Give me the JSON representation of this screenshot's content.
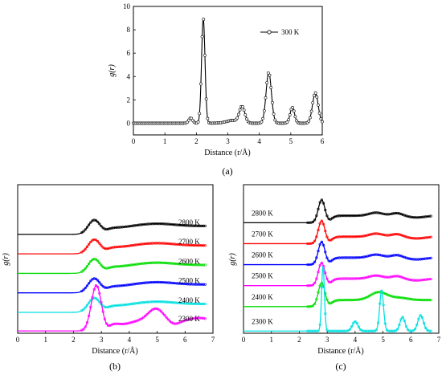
{
  "chart_data": [
    {
      "type": "line",
      "panel_label": "(a)",
      "xlabel": "Distance (r/Å)",
      "ylabel": "g(r)",
      "xlim": [
        0,
        6
      ],
      "ylim": [
        -1,
        10
      ],
      "xticks": [
        "0",
        "1",
        "2",
        "3",
        "4",
        "5",
        "6"
      ],
      "yticks": [
        "0",
        "2",
        "4",
        "6",
        "8",
        "10"
      ],
      "legend_position": "top-right",
      "series": [
        {
          "name": "300 K",
          "color": "#000000",
          "peaks": [
            [
              1.82,
              0.45,
              0.06
            ],
            [
              2.22,
              9.0,
              0.055
            ],
            [
              3.45,
              1.45,
              0.09
            ],
            [
              4.3,
              4.35,
              0.085
            ],
            [
              5.05,
              1.35,
              0.07
            ],
            [
              5.78,
              2.6,
              0.09
            ]
          ],
          "x": [
            0,
            1.5,
            1.82,
            2.0,
            2.22,
            2.45,
            3.0,
            3.45,
            3.8,
            4.3,
            4.7,
            5.05,
            5.4,
            5.78,
            6.0
          ],
          "y": [
            0,
            0,
            0.45,
            0.05,
            9.0,
            0.3,
            0.6,
            1.45,
            0.2,
            4.35,
            0.15,
            1.35,
            0.2,
            2.6,
            0.5
          ]
        }
      ]
    },
    {
      "type": "line",
      "panel_label": "(b)",
      "xlabel": "Distance (r/Å)",
      "ylabel": "g(r)",
      "xlim": [
        0,
        7
      ],
      "ylim": [
        0,
        16
      ],
      "xticks": [
        "0",
        "1",
        "2",
        "3",
        "4",
        "5",
        "6",
        "7"
      ],
      "series": [
        {
          "name": "2800 K",
          "color": "#000000",
          "offset": 10.4,
          "profile": "molten",
          "width": 1.0
        },
        {
          "name": "2700 K",
          "color": "#ff0000",
          "offset": 8.3,
          "profile": "molten",
          "width": 1.0
        },
        {
          "name": "2600 K",
          "color": "#00dd00",
          "offset": 6.2,
          "profile": "molten",
          "width": 1.0
        },
        {
          "name": "2500 K",
          "color": "#0000ff",
          "offset": 4.1,
          "profile": "molten",
          "width": 1.0
        },
        {
          "name": "2400 K",
          "color": "#00e0e0",
          "offset": 2.0,
          "profile": "molten",
          "width": 1.0
        },
        {
          "name": "2300 K",
          "color": "#ff00ff",
          "offset": 0.0,
          "profile": "ordered",
          "width": 1.0
        }
      ]
    },
    {
      "type": "line",
      "panel_label": "(c)",
      "xlabel": "Distance (r/Å)",
      "ylabel": "g(r)",
      "xlim": [
        0,
        7
      ],
      "ylim": [
        0,
        17
      ],
      "xticks": [
        "0",
        "1",
        "2",
        "3",
        "4",
        "5",
        "6",
        "7"
      ],
      "series": [
        {
          "name": "2800 K",
          "color": "#000000",
          "offset": 12.4,
          "profile": "molten_sharp"
        },
        {
          "name": "2700 K",
          "color": "#ff0000",
          "offset": 10.0,
          "profile": "molten_sharp"
        },
        {
          "name": "2600 K",
          "color": "#0000ff",
          "offset": 7.6,
          "profile": "molten_sharp"
        },
        {
          "name": "2500 K",
          "color": "#ff00ff",
          "offset": 5.2,
          "profile": "molten_sharp"
        },
        {
          "name": "2400 K",
          "color": "#00dd00",
          "offset": 2.8,
          "profile": "molten_b"
        },
        {
          "name": "2300 K",
          "color": "#00e0e0",
          "offset": 0.0,
          "profile": "crystal"
        }
      ]
    }
  ]
}
